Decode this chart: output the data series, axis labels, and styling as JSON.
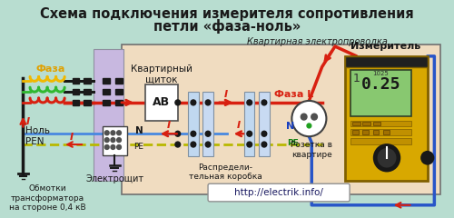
{
  "bg_color": "#b8ddd0",
  "title_line1": "Схема подключения измерителя сопротивления",
  "title_line2": "петли «фаза-ноль»",
  "title_color": "#1a1a1a",
  "title_fontsize": 10.5,
  "subtitle": "Квартирная электропроводка",
  "label_faza": "Фаза",
  "label_nol": "Ноль",
  "label_pen": "PEN",
  "label_obm": "Обмотки\nтрансформатора\nна стороне 0,4 кВ",
  "label_electroscit": "Электрощит",
  "label_kvart_scit": "Квартирный\nщиток",
  "label_raspred": "Распредели-\nтельная коробка",
  "label_rozetka": "Розетка в\nквартире",
  "label_izmeritel": "Измеритель",
  "label_ab": "АВ",
  "label_faza_l": "Фаза L",
  "label_url": "http://electrik.info/",
  "label_I": "I",
  "coil_yellow": "#f0b800",
  "coil_green": "#30b830",
  "coil_red": "#d82010",
  "wire_red": "#d82010",
  "wire_blue": "#2855c8",
  "wire_black": "#181818",
  "wire_yg": "#b8b800",
  "wire_blue2": "#4888e0",
  "panel_bg": "#f0dcc0",
  "shield_bg": "#c8b8e0",
  "text_red": "#d82010",
  "text_yellow": "#e0a000",
  "text_blue": "#1840c0",
  "text_green": "#108010"
}
